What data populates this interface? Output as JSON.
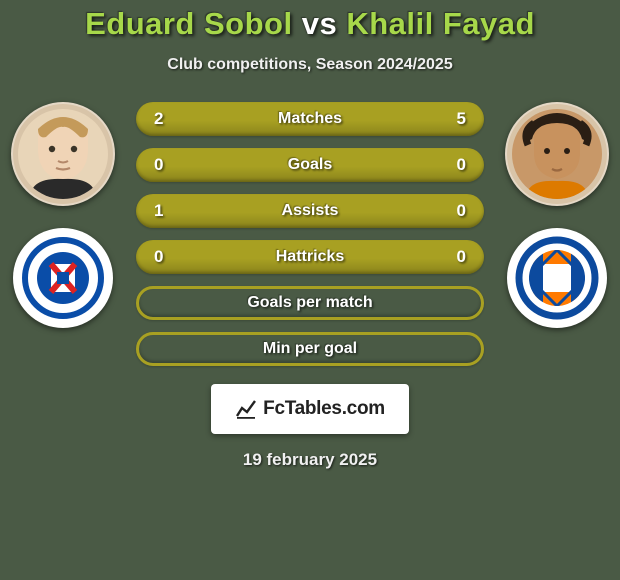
{
  "background_color": "#4a5a45",
  "title": {
    "player1": "Eduard Sobol",
    "vs": "vs",
    "player2": "Khalil Fayad",
    "player1_color": "#a7d84a",
    "vs_color": "#ffffff",
    "player2_color": "#a7d84a"
  },
  "subtitle": "Club competitions, Season 2024/2025",
  "left_side": {
    "avatar_bg": "#e8d5b8",
    "crest_outer": "#ffffff",
    "crest_ring": "#0a4da8",
    "crest_center": "#0a4da8",
    "crest_accent": "#d22"
  },
  "right_side": {
    "avatar_bg": "#c89868",
    "crest_outer": "#ffffff",
    "crest_ring": "#0c4a9e",
    "crest_stripe1": "#ff7a00",
    "crest_stripe2": "#0c4a9e"
  },
  "bars": [
    {
      "label": "Matches",
      "left": "2",
      "right": "5",
      "style": "solid",
      "fill": "#a8a022"
    },
    {
      "label": "Goals",
      "left": "0",
      "right": "0",
      "style": "solid",
      "fill": "#a8a022"
    },
    {
      "label": "Assists",
      "left": "1",
      "right": "0",
      "style": "solid",
      "fill": "#a8a022"
    },
    {
      "label": "Hattricks",
      "left": "0",
      "right": "0",
      "style": "solid",
      "fill": "#a8a022"
    },
    {
      "label": "Goals per match",
      "left": "",
      "right": "",
      "style": "border",
      "border": "#a8a022"
    },
    {
      "label": "Min per goal",
      "left": "",
      "right": "",
      "style": "border",
      "border": "#a8a022"
    }
  ],
  "bar_label_color": "#ffffff",
  "bar_value_color": "#ffffff",
  "logo": {
    "prefix_icon": "chart",
    "text": "FcTables.com"
  },
  "date": "19 february 2025"
}
